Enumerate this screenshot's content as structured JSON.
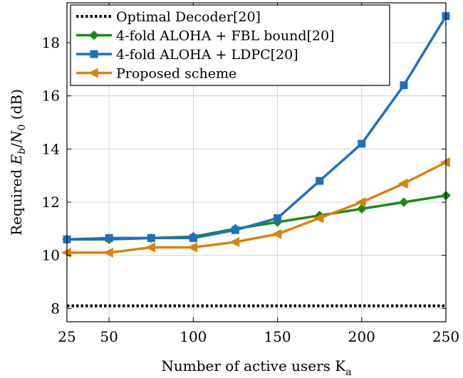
{
  "chart_data": {
    "type": "line",
    "title": "",
    "xlabel": "Number of active users K",
    "xlabel_subscript": "a",
    "ylabel": "Required E/N (dB)",
    "ylabel_parts": [
      "Required ",
      "E",
      "b",
      "/",
      "N",
      "0",
      " (dB)"
    ],
    "xlim": [
      25,
      250
    ],
    "ylim": [
      7.5,
      19.5
    ],
    "xticks": [
      25,
      50,
      100,
      150,
      200,
      250
    ],
    "yticks": [
      8,
      10,
      12,
      14,
      16,
      18
    ],
    "grid": true,
    "legend_position": "top-left",
    "series": [
      {
        "name": "Optimal Decoder[20]",
        "color": "#000000",
        "style": "dotted",
        "marker": "none",
        "x": [
          25,
          250
        ],
        "y": [
          8.1,
          8.1
        ]
      },
      {
        "name": "4-fold ALOHA + FBL bound[20]",
        "color": "#1a8a1a",
        "style": "solid",
        "marker": "diamond",
        "x": [
          25,
          50,
          75,
          100,
          125,
          150,
          175,
          200,
          225,
          250
        ],
        "y": [
          10.6,
          10.6,
          10.65,
          10.7,
          11.0,
          11.25,
          11.5,
          11.75,
          12.0,
          12.25
        ]
      },
      {
        "name": "4-fold ALOHA + LDPC[20]",
        "color": "#1f6fc0",
        "style": "solid",
        "marker": "square",
        "x": [
          25,
          50,
          75,
          100,
          125,
          150,
          175,
          200,
          225,
          250
        ],
        "y": [
          10.6,
          10.65,
          10.65,
          10.65,
          10.95,
          11.4,
          12.8,
          14.2,
          16.4,
          19.0
        ]
      },
      {
        "name": "Proposed scheme",
        "color": "#d9820f",
        "style": "solid",
        "marker": "triangle-left",
        "x": [
          25,
          50,
          75,
          100,
          125,
          150,
          175,
          200,
          225,
          250
        ],
        "y": [
          10.1,
          10.1,
          10.3,
          10.3,
          10.5,
          10.8,
          11.4,
          12.0,
          12.7,
          13.5
        ]
      }
    ]
  }
}
